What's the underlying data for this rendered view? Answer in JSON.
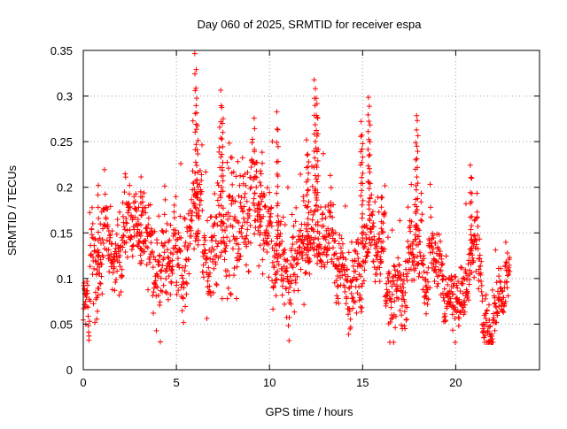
{
  "chart_data": {
    "type": "scatter",
    "title": "Day 060 of 2025, SRMTID for receiver espa",
    "xlabel": "GPS time / hours",
    "ylabel": "SRMTID / TECUs",
    "xlim": [
      0,
      24.5
    ],
    "ylim": [
      0,
      0.35
    ],
    "xticks": [
      0,
      5,
      10,
      15,
      20
    ],
    "xtick_labels": [
      "0",
      "5",
      "10",
      "15",
      "20"
    ],
    "yticks": [
      0,
      0.05,
      0.1,
      0.15,
      0.2,
      0.25,
      0.3,
      0.35
    ],
    "ytick_labels": [
      "0",
      "0.05",
      "0.1",
      "0.15",
      "0.2",
      "0.25",
      "0.3",
      "0.35"
    ],
    "grid": true,
    "legend": "none",
    "marker": "plus",
    "series_color": "#ff0000",
    "generation": {
      "note": "Point cloud densely sampled; envelope described by segments [t_start, t_end, base_value, spread] plus notable spike events [t, peak]",
      "t_start": 0.0,
      "t_end": 22.9,
      "step_hours": 0.0125,
      "segments": [
        [
          0.0,
          0.35,
          0.07,
          0.02
        ],
        [
          0.35,
          1.2,
          0.14,
          0.04
        ],
        [
          1.2,
          3.0,
          0.115,
          0.03
        ],
        [
          3.0,
          4.2,
          0.115,
          0.035
        ],
        [
          4.2,
          5.0,
          0.14,
          0.03
        ],
        [
          5.0,
          5.6,
          0.1,
          0.04
        ],
        [
          5.6,
          6.4,
          0.15,
          0.04
        ],
        [
          6.4,
          7.2,
          0.11,
          0.045
        ],
        [
          7.2,
          9.6,
          0.17,
          0.05
        ],
        [
          9.6,
          10.6,
          0.12,
          0.04
        ],
        [
          10.6,
          12.4,
          0.13,
          0.04
        ],
        [
          12.4,
          13.4,
          0.14,
          0.04
        ],
        [
          13.4,
          15.2,
          0.12,
          0.035
        ],
        [
          15.2,
          16.2,
          0.15,
          0.04
        ],
        [
          16.2,
          17.4,
          0.09,
          0.035
        ],
        [
          17.4,
          18.8,
          0.11,
          0.035
        ],
        [
          18.8,
          20.5,
          0.08,
          0.025
        ],
        [
          20.5,
          21.2,
          0.13,
          0.03
        ],
        [
          21.2,
          22.0,
          0.085,
          0.03
        ],
        [
          22.0,
          22.9,
          0.105,
          0.025
        ]
      ],
      "spikes": [
        [
          6.0,
          0.348
        ],
        [
          6.05,
          0.33
        ],
        [
          6.1,
          0.3
        ],
        [
          6.15,
          0.27
        ],
        [
          7.4,
          0.31
        ],
        [
          7.45,
          0.29
        ],
        [
          7.5,
          0.28
        ],
        [
          9.2,
          0.24
        ],
        [
          9.5,
          0.22
        ],
        [
          10.4,
          0.283
        ],
        [
          10.45,
          0.265
        ],
        [
          12.0,
          0.255
        ],
        [
          12.05,
          0.24
        ],
        [
          12.1,
          0.23
        ],
        [
          12.4,
          0.318
        ],
        [
          12.45,
          0.31
        ],
        [
          12.5,
          0.3
        ],
        [
          12.55,
          0.295
        ],
        [
          12.6,
          0.28
        ],
        [
          14.9,
          0.275
        ],
        [
          14.95,
          0.26
        ],
        [
          15.0,
          0.25
        ],
        [
          15.3,
          0.3
        ],
        [
          15.35,
          0.29
        ],
        [
          15.4,
          0.27
        ],
        [
          16.0,
          0.19
        ],
        [
          17.9,
          0.283
        ],
        [
          17.95,
          0.275
        ],
        [
          17.85,
          0.25
        ],
        [
          20.8,
          0.225
        ],
        [
          20.85,
          0.21
        ],
        [
          3.1,
          0.212
        ],
        [
          0.8,
          0.205
        ]
      ]
    }
  }
}
